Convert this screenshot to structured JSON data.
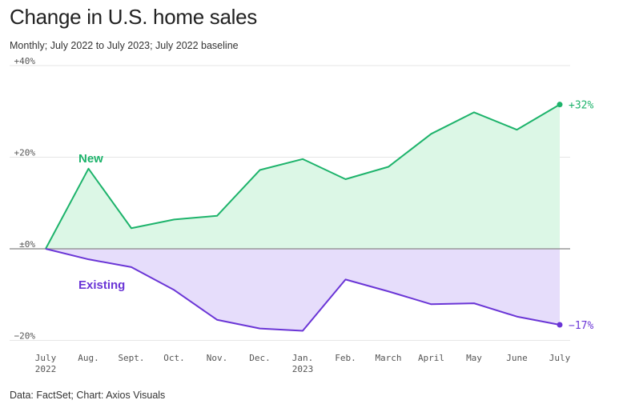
{
  "header": {
    "title": "Change in U.S. home sales",
    "subtitle": "Monthly; July 2022 to July 2023; July 2022 baseline"
  },
  "footer": {
    "source": "Data: FactSet; Chart: Axios Visuals"
  },
  "colors": {
    "new_line": "#1db36b",
    "new_fill": "#dcf7e6",
    "existing_line": "#6a35d6",
    "existing_fill": "#e6ddfb",
    "grid": "#e6e6e6",
    "zero_line": "#999999"
  },
  "chart_data": {
    "type": "area",
    "categories": [
      "July",
      "Aug.",
      "Sept.",
      "Oct.",
      "Nov.",
      "Dec.",
      "Jan.",
      "Feb.",
      "March",
      "April",
      "May",
      "June",
      "July"
    ],
    "category_sublabels": [
      "2022",
      "",
      "",
      "",
      "",
      "",
      "2023",
      "",
      "",
      "",
      "",
      "",
      ""
    ],
    "y_ticks": [
      {
        "value": 40,
        "label": "+40%"
      },
      {
        "value": 20,
        "label": "+20%"
      },
      {
        "value": 0,
        "label": "±0%"
      },
      {
        "value": -20,
        "label": "−20%"
      }
    ],
    "ylim": [
      -20,
      40
    ],
    "grid": true,
    "series": [
      {
        "name": "New",
        "values": [
          0,
          17.5,
          4.5,
          6.4,
          7.2,
          17.2,
          19.6,
          15.2,
          17.9,
          25.1,
          29.8,
          26.0,
          31.5
        ],
        "end_label": "+32%"
      },
      {
        "name": "Existing",
        "values": [
          0,
          -2.3,
          -4.0,
          -9.0,
          -15.5,
          -17.4,
          -17.9,
          -6.7,
          -9.3,
          -12.1,
          -11.9,
          -14.8,
          -16.6
        ],
        "end_label": "−17%"
      }
    ]
  }
}
